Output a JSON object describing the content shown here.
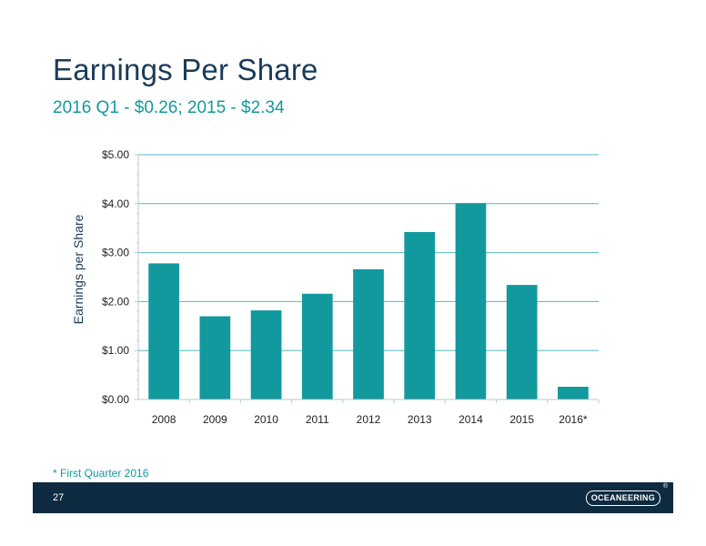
{
  "slide": {
    "title": "Earnings Per Share",
    "subtitle": "2016 Q1 - $0.26; 2015 - $2.34",
    "footnote": "* First Quarter 2016",
    "page_number": "27",
    "logo_text": "OCEANEERING",
    "logo_mark": "®"
  },
  "colors": {
    "bar": "#12999e",
    "grid": "#56b8c4",
    "footer": "#0d2a40",
    "title": "#1b3b5a"
  },
  "chart_data": {
    "type": "bar",
    "title": "",
    "xlabel": "",
    "ylabel": "Earnings per Share",
    "categories": [
      "2008",
      "2009",
      "2010",
      "2011",
      "2012",
      "2013",
      "2014",
      "2015",
      "2016*"
    ],
    "values": [
      2.78,
      1.7,
      1.82,
      2.16,
      2.66,
      3.42,
      4.01,
      2.34,
      0.26
    ],
    "ylim": [
      0,
      5
    ],
    "yticks": [
      0,
      1,
      2,
      3,
      4,
      5
    ],
    "ytick_labels": [
      "$0.00",
      "$1.00",
      "$2.00",
      "$3.00",
      "$4.00",
      "$5.00"
    ],
    "grid": true,
    "legend": "none"
  }
}
